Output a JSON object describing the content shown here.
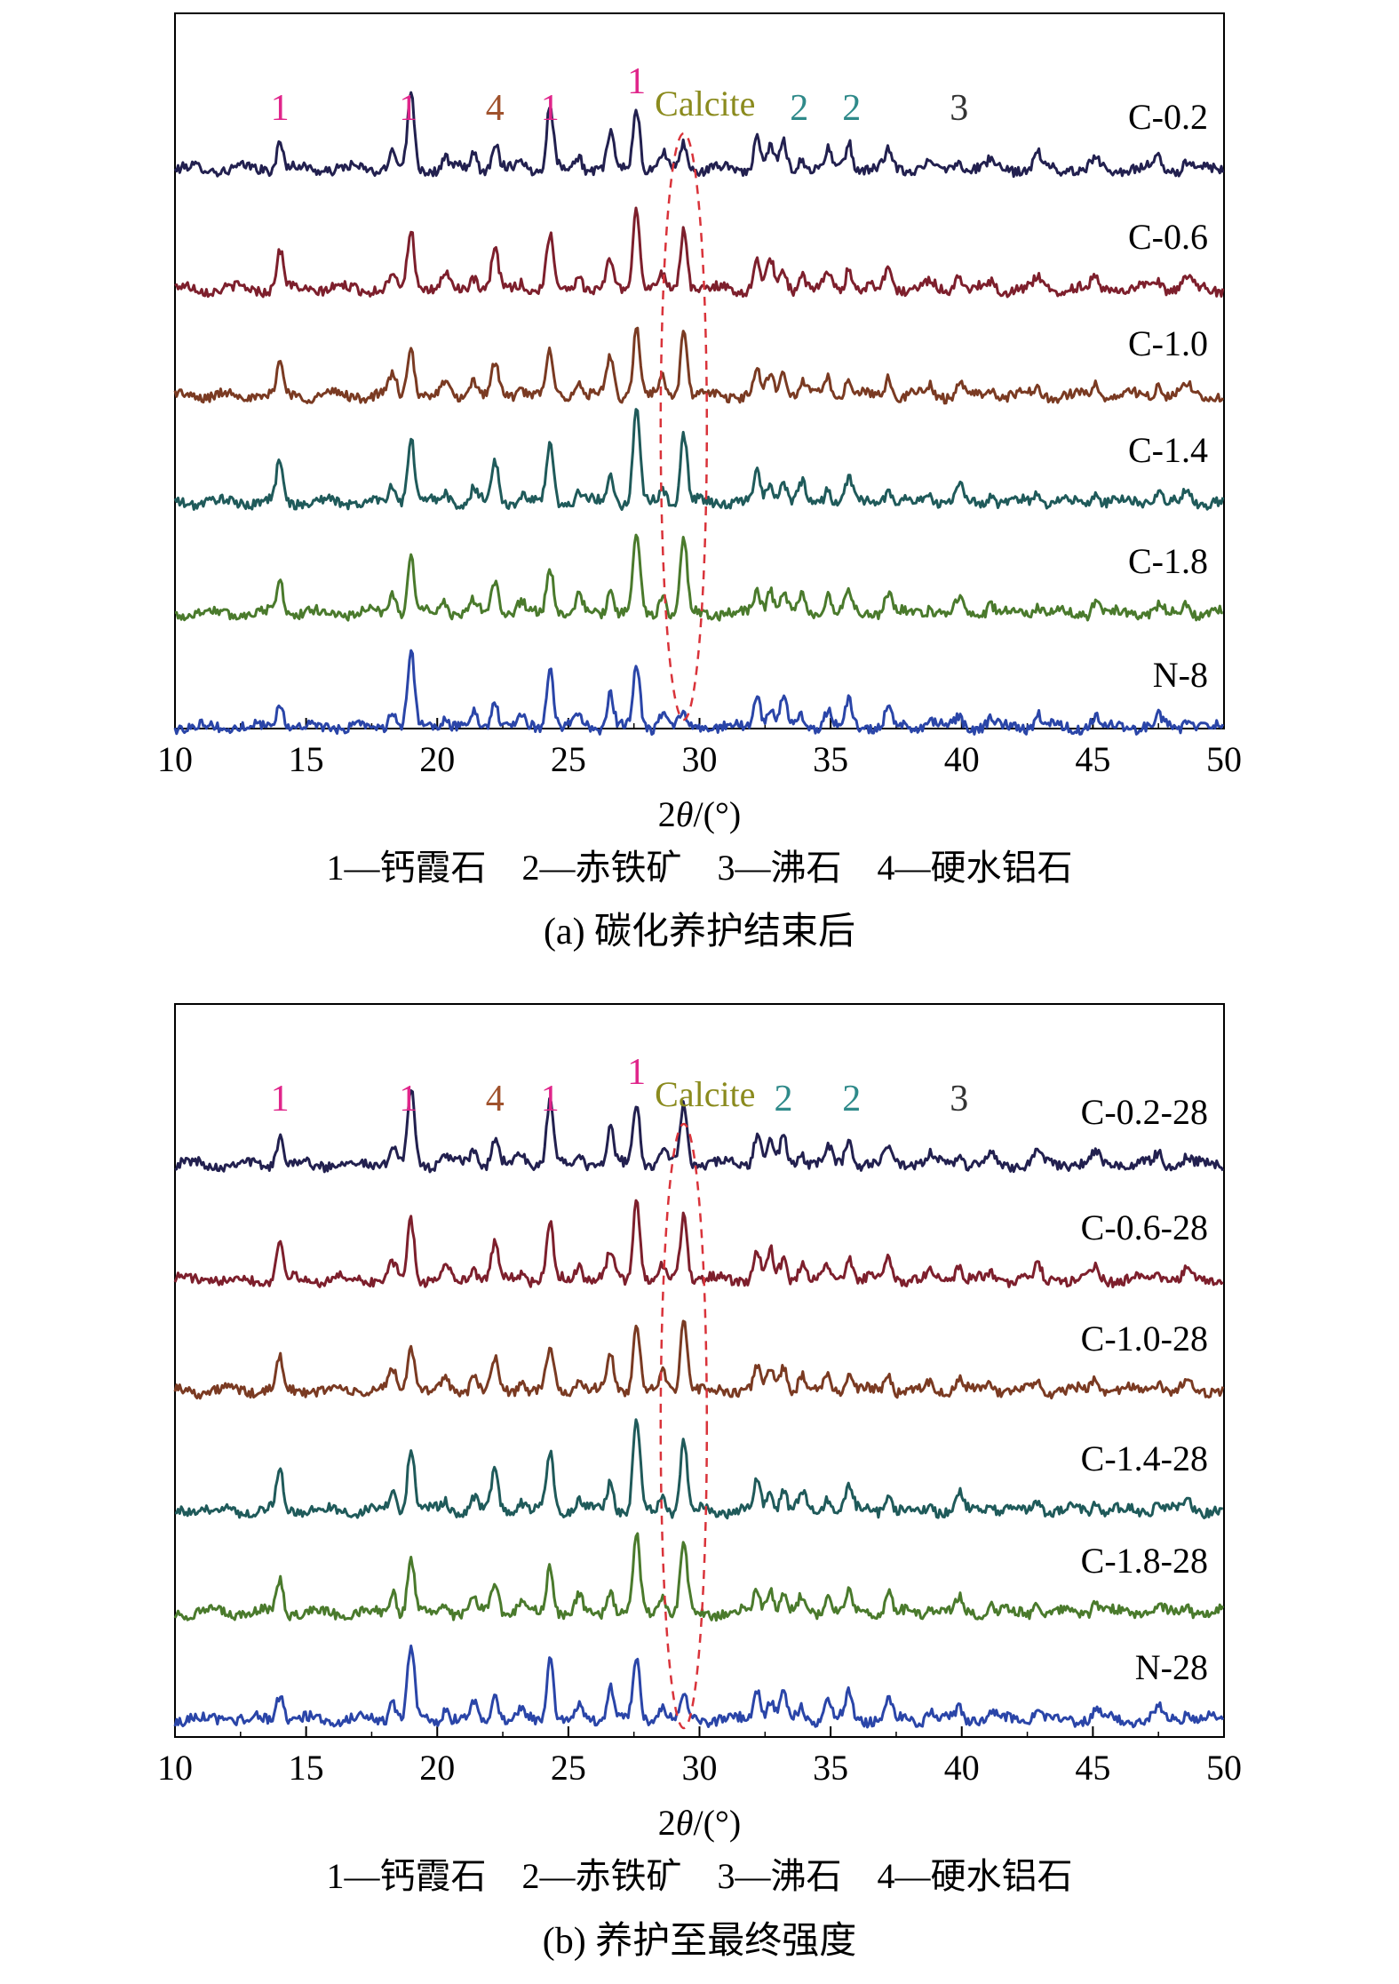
{
  "chart_data": [
    {
      "type": "line",
      "panel": "a",
      "caption": "(a) 碳化养护结束后",
      "xlabel_prefix": "2",
      "xlabel_symbol": "θ",
      "xlabel_suffix": "/(°)",
      "xlim": [
        10,
        50
      ],
      "xticks": [
        10,
        15,
        20,
        25,
        30,
        35,
        40,
        45,
        50
      ],
      "yaxis_visible": false,
      "legend_text": {
        "items": [
          "1—钙霞石",
          "2—赤铁矿",
          "3—沸石",
          "4—硬水铝石"
        ]
      },
      "calcite_label": "Calcite",
      "calcite_label_color": "#8b8b1e",
      "calcite_ellipse_color": "#d9333a",
      "peak_labels": [
        {
          "text": "1",
          "x": 14.0,
          "color": "#e0258a"
        },
        {
          "text": "1",
          "x": 18.9,
          "color": "#e0258a"
        },
        {
          "text": "4",
          "x": 22.2,
          "color": "#a0522d"
        },
        {
          "text": "1",
          "x": 24.3,
          "color": "#e0258a"
        },
        {
          "text": "1",
          "x": 27.6,
          "color": "#e0258a"
        },
        {
          "text": "2",
          "x": 33.8,
          "color": "#2f8a8a"
        },
        {
          "text": "2",
          "x": 35.8,
          "color": "#2f8a8a"
        },
        {
          "text": "3",
          "x": 39.9,
          "color": "#333333"
        }
      ],
      "series": [
        {
          "name": "C-0.2",
          "color": "#22204f",
          "calcite": 0.35
        },
        {
          "name": "C-0.6",
          "color": "#7d1f2c",
          "calcite": 0.85
        },
        {
          "name": "C-1.0",
          "color": "#7a3a22",
          "calcite": 0.9
        },
        {
          "name": "C-1.4",
          "color": "#1f5a5a",
          "calcite": 0.95
        },
        {
          "name": "C-1.8",
          "color": "#4a7a2c",
          "calcite": 1.0
        },
        {
          "name": "N-8",
          "color": "#2a45a8",
          "calcite": 0.15
        }
      ]
    },
    {
      "type": "line",
      "panel": "b",
      "caption": "(b) 养护至最终强度",
      "xlabel_prefix": "2",
      "xlabel_symbol": "θ",
      "xlabel_suffix": "/(°)",
      "xlim": [
        10,
        50
      ],
      "xticks": [
        10,
        15,
        20,
        25,
        30,
        35,
        40,
        45,
        50
      ],
      "yaxis_visible": false,
      "legend_text": {
        "items": [
          "1—钙霞石",
          "2—赤铁矿",
          "3—沸石",
          "4—硬水铝石"
        ]
      },
      "calcite_label": "Calcite",
      "calcite_label_color": "#8b8b1e",
      "calcite_ellipse_color": "#d9333a",
      "peak_labels": [
        {
          "text": "1",
          "x": 14.0,
          "color": "#e0258a"
        },
        {
          "text": "1",
          "x": 18.9,
          "color": "#e0258a"
        },
        {
          "text": "4",
          "x": 22.2,
          "color": "#a0522d"
        },
        {
          "text": "1",
          "x": 24.3,
          "color": "#e0258a"
        },
        {
          "text": "1",
          "x": 27.6,
          "color": "#e0258a"
        },
        {
          "text": "2",
          "x": 33.2,
          "color": "#2f8a8a"
        },
        {
          "text": "2",
          "x": 35.8,
          "color": "#2f8a8a"
        },
        {
          "text": "3",
          "x": 39.9,
          "color": "#333333"
        }
      ],
      "series": [
        {
          "name": "C-0.2-28",
          "color": "#22204f",
          "calcite": 0.85
        },
        {
          "name": "C-0.6-28",
          "color": "#7d1f2c",
          "calcite": 0.95
        },
        {
          "name": "C-1.0-28",
          "color": "#7a3a22",
          "calcite": 1.0
        },
        {
          "name": "C-1.4-28",
          "color": "#1f5a5a",
          "calcite": 1.0
        },
        {
          "name": "C-1.8-28",
          "color": "#4a7a2c",
          "calcite": 0.95
        },
        {
          "name": "N-28",
          "color": "#2a45a8",
          "calcite": 0.3
        }
      ]
    }
  ]
}
